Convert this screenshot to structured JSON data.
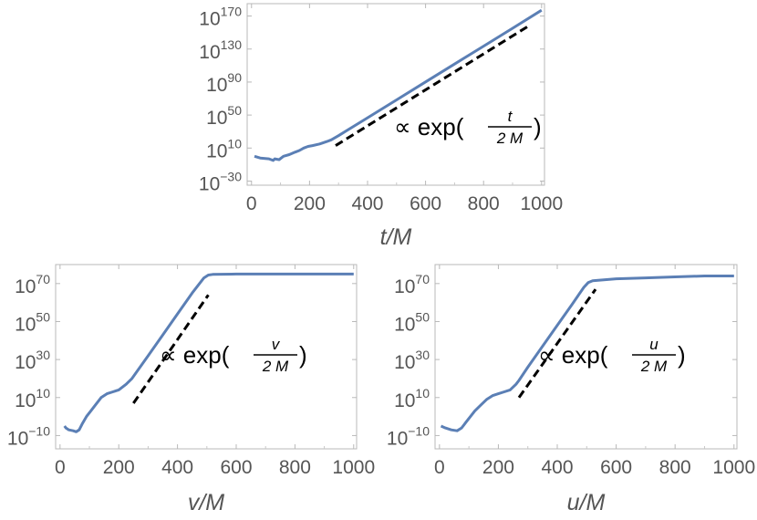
{
  "chart_data": [
    {
      "type": "line",
      "title": "",
      "xlabel": "t/M",
      "ylabel": "",
      "log_y": true,
      "xlim": [
        -15,
        1010
      ],
      "ylim_exp": [
        -35,
        185
      ],
      "x_ticks": [
        "0",
        "200",
        "400",
        "600",
        "800",
        "1000"
      ],
      "y_ticks": [
        {
          "base": "10",
          "exp": "170"
        },
        {
          "base": "10",
          "exp": "130"
        },
        {
          "base": "10",
          "exp": "90"
        },
        {
          "base": "10",
          "exp": "50"
        },
        {
          "base": "10",
          "exp": "10"
        },
        {
          "base": "10",
          "exp": "−30"
        }
      ],
      "series": [
        {
          "color": "#5b7fb5",
          "x": [
            10,
            30,
            60,
            75,
            80,
            95,
            110,
            130,
            150,
            165,
            180,
            195,
            210,
            235,
            260,
            275,
            300,
            400,
            500,
            600,
            700,
            800,
            900,
            1000
          ],
          "log10_y": [
            0,
            -2,
            -3,
            -5,
            -3,
            -4,
            0,
            2,
            5,
            7,
            10,
            12,
            13,
            15,
            18,
            20,
            25,
            46.7,
            68.4,
            90.1,
            111.8,
            133.5,
            155.2,
            177
          ]
        }
      ],
      "reference_line": {
        "color": "#000000",
        "style": "dashed",
        "x": [
          290,
          960
        ],
        "log10_y": [
          13,
          159
        ],
        "annotation": {
          "prefix": "∝ exp(",
          "numerator": "t",
          "denominator": "2 M",
          "suffix": ")"
        }
      }
    },
    {
      "type": "line",
      "title": "",
      "xlabel": "v/M",
      "ylabel": "",
      "log_y": true,
      "xlim": [
        -15,
        1010
      ],
      "ylim_exp": [
        -17,
        80
      ],
      "x_ticks": [
        "0",
        "200",
        "400",
        "600",
        "800",
        "1000"
      ],
      "y_ticks": [
        {
          "base": "10",
          "exp": "70"
        },
        {
          "base": "10",
          "exp": "50"
        },
        {
          "base": "10",
          "exp": "30"
        },
        {
          "base": "10",
          "exp": "10"
        },
        {
          "base": "10",
          "exp": "−10"
        }
      ],
      "series": [
        {
          "color": "#5b7fb5",
          "x": [
            15,
            20,
            30,
            45,
            55,
            65,
            75,
            90,
            105,
            120,
            140,
            160,
            180,
            200,
            225,
            245,
            300,
            350,
            400,
            450,
            490,
            505,
            520,
            600,
            700,
            800,
            900,
            1000
          ],
          "log10_y": [
            -5,
            -6,
            -7,
            -7.5,
            -8,
            -7,
            -4,
            0,
            3,
            6,
            10,
            12,
            13,
            14,
            17,
            20,
            32,
            43,
            54,
            65,
            73,
            74.5,
            74.8,
            75,
            75,
            75,
            75,
            75
          ]
        }
      ],
      "reference_line": {
        "color": "#000000",
        "style": "dashed",
        "x": [
          250,
          505
        ],
        "log10_y": [
          7,
          64
        ],
        "annotation": {
          "prefix": "∝ exp(",
          "numerator": "v",
          "denominator": "2 M",
          "suffix": ")"
        }
      }
    },
    {
      "type": "line",
      "title": "",
      "xlabel": "u/M",
      "ylabel": "",
      "log_y": true,
      "xlim": [
        -15,
        1010
      ],
      "ylim_exp": [
        -17,
        80
      ],
      "x_ticks": [
        "0",
        "200",
        "400",
        "600",
        "800",
        "1000"
      ],
      "y_ticks": [
        {
          "base": "10",
          "exp": "70"
        },
        {
          "base": "10",
          "exp": "50"
        },
        {
          "base": "10",
          "exp": "30"
        },
        {
          "base": "10",
          "exp": "10"
        },
        {
          "base": "10",
          "exp": "−10"
        }
      ],
      "series": [
        {
          "color": "#5b7fb5",
          "x": [
            5,
            20,
            40,
            60,
            75,
            90,
            105,
            120,
            140,
            160,
            180,
            200,
            220,
            240,
            260,
            270,
            300,
            350,
            400,
            450,
            490,
            505,
            520,
            600,
            700,
            800,
            900,
            1000
          ],
          "log10_y": [
            -5,
            -6,
            -7,
            -7.5,
            -6,
            -3,
            0,
            3,
            6,
            9,
            11,
            12,
            13,
            14,
            17,
            19,
            26,
            37,
            48,
            59,
            68,
            70.5,
            71.5,
            72.5,
            73,
            73.5,
            74,
            74
          ]
        }
      ],
      "reference_line": {
        "color": "#000000",
        "style": "dashed",
        "x": [
          270,
          530
        ],
        "log10_y": [
          10,
          67
        ],
        "annotation": {
          "prefix": "∝ exp(",
          "numerator": "u",
          "denominator": "2 M",
          "suffix": ")"
        }
      }
    }
  ]
}
